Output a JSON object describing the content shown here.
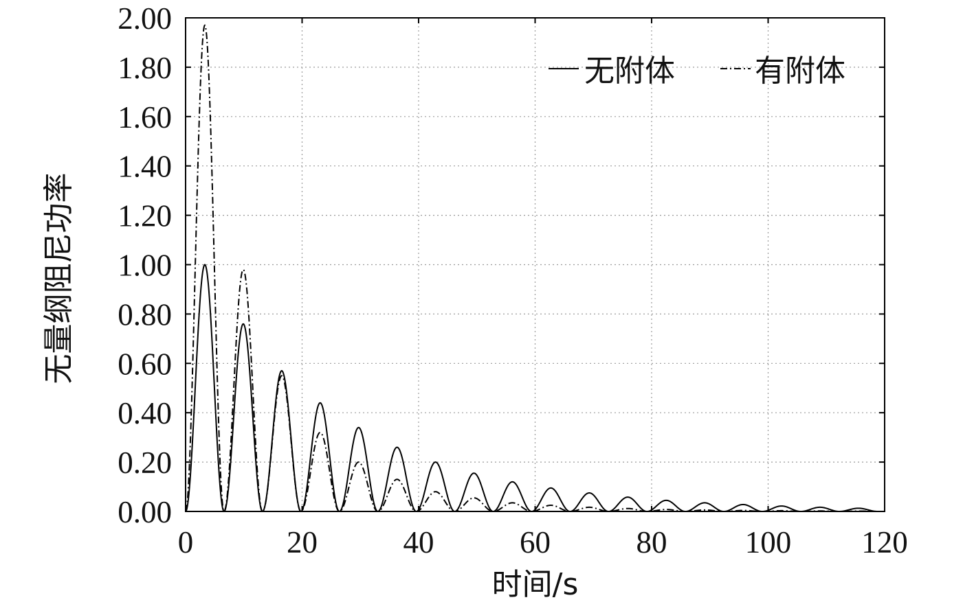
{
  "chart_data": {
    "type": "line",
    "title": "",
    "xlabel": "时间/s",
    "ylabel": "无量纲阻尼功率",
    "xlim": [
      0,
      120
    ],
    "ylim": [
      0,
      2.0
    ],
    "xticks": [
      0,
      20,
      40,
      60,
      80,
      100,
      120
    ],
    "xtick_labels": [
      "0",
      "20",
      "40",
      "60",
      "80",
      "100",
      "120"
    ],
    "yticks": [
      0,
      0.2,
      0.4,
      0.6,
      0.8,
      1.0,
      1.2,
      1.4,
      1.6,
      1.8,
      2.0
    ],
    "ytick_labels": [
      "0.00",
      "0.20",
      "0.40",
      "0.60",
      "0.80",
      "1.00",
      "1.20",
      "1.40",
      "1.60",
      "1.80",
      "2.00"
    ],
    "grid": true,
    "legend_position": "top-right",
    "series": [
      {
        "name": "无附体",
        "style": "solid",
        "color": "#000000",
        "peaks_x": [
          3.3,
          9.9,
          16.5,
          23.1,
          29.7,
          36.3,
          42.9,
          49.5,
          56.1,
          62.7,
          69.3,
          75.9,
          82.5,
          89.1,
          95.7,
          102.3,
          108.9,
          115.5
        ],
        "peaks_y": [
          1.0,
          0.76,
          0.57,
          0.44,
          0.34,
          0.26,
          0.2,
          0.155,
          0.12,
          0.095,
          0.075,
          0.058,
          0.045,
          0.035,
          0.028,
          0.022,
          0.017,
          0.013
        ]
      },
      {
        "name": "有附体",
        "style": "dash-dot",
        "color": "#000000",
        "peaks_x": [
          3.3,
          9.9,
          16.5,
          23.1,
          29.7,
          36.3,
          42.9,
          49.5,
          56.1,
          62.7,
          69.3,
          75.9,
          82.5,
          89.1,
          95.7,
          102.3,
          108.9,
          115.5
        ],
        "peaks_y": [
          1.97,
          0.98,
          0.55,
          0.32,
          0.2,
          0.13,
          0.08,
          0.055,
          0.035,
          0.025,
          0.017,
          0.012,
          0.008,
          0.006,
          0.004,
          0.003,
          0.002,
          0.0015
        ]
      }
    ]
  }
}
